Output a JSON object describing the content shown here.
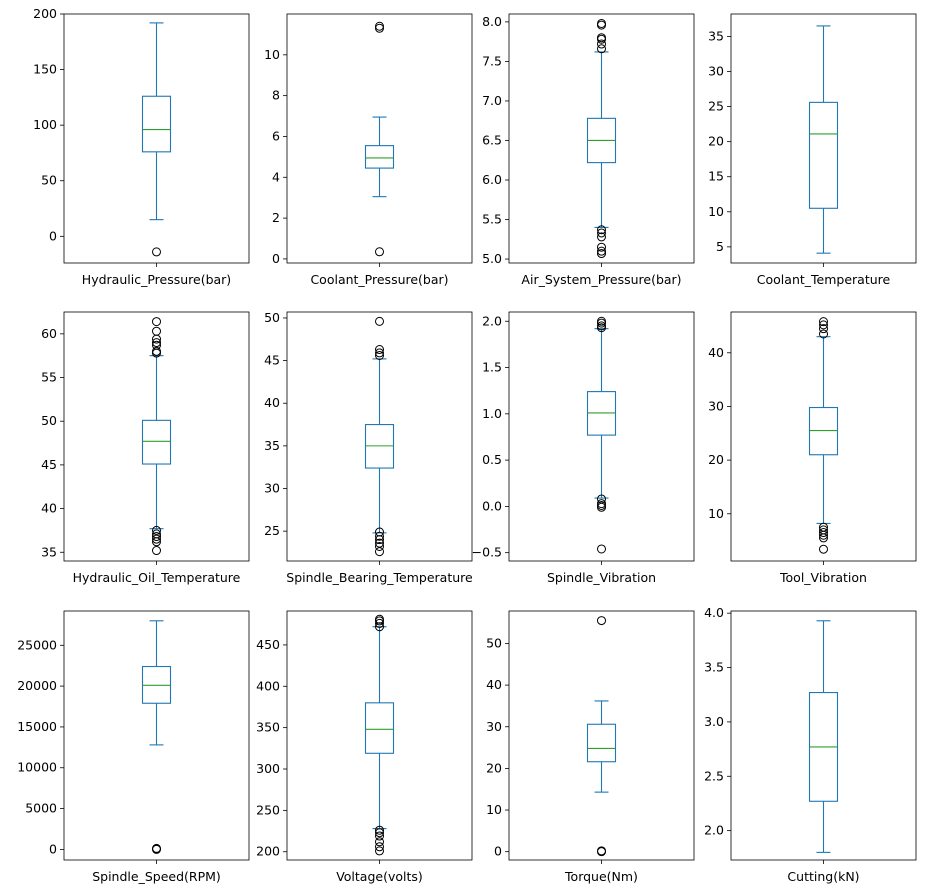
{
  "colors": {
    "box": "#1f77b4",
    "median": "#2ca02c",
    "outlier": "#000000",
    "axes": "#000000"
  },
  "chart_data": [
    {
      "type": "box",
      "xlabel": "Hydraulic_Pressure(bar)",
      "ylim": [
        -24,
        200
      ],
      "yticks": [
        "0",
        "50",
        "100",
        "150",
        "200"
      ],
      "yticks_values": [
        0,
        50,
        100,
        150,
        200
      ],
      "whisker_low": 15,
      "q1": 76,
      "median": 96,
      "q3": 126,
      "whisker_high": 192,
      "outliers": [
        -14
      ]
    },
    {
      "type": "box",
      "xlabel": "Coolant_Pressure(bar)",
      "ylim": [
        -0.2,
        12
      ],
      "yticks": [
        "0",
        "2",
        "4",
        "6",
        "8",
        "10"
      ],
      "yticks_values": [
        0,
        2,
        4,
        6,
        8,
        10
      ],
      "whisker_low": 3.05,
      "q1": 4.45,
      "median": 4.95,
      "q3": 5.55,
      "whisker_high": 6.95,
      "outliers": [
        0.35,
        11.3,
        11.4
      ]
    },
    {
      "type": "box",
      "xlabel": "Air_System_Pressure(bar)",
      "ylim": [
        4.95,
        8.1
      ],
      "yticks": [
        "5.0",
        "5.5",
        "6.0",
        "6.5",
        "7.0",
        "7.5",
        "8.0"
      ],
      "yticks_values": [
        5.0,
        5.5,
        6.0,
        6.5,
        7.0,
        7.5,
        8.0
      ],
      "whisker_low": 5.4,
      "q1": 6.22,
      "median": 6.5,
      "q3": 6.78,
      "whisker_high": 7.62,
      "outliers": [
        5.07,
        5.1,
        5.15,
        5.28,
        5.33,
        5.37,
        7.66,
        7.72,
        7.78,
        7.8,
        7.96,
        7.98
      ]
    },
    {
      "type": "box",
      "xlabel": "Coolant_Temperature",
      "ylim": [
        2.7,
        38.2
      ],
      "yticks": [
        "5",
        "10",
        "15",
        "20",
        "25",
        "30",
        "35"
      ],
      "yticks_values": [
        5,
        10,
        15,
        20,
        25,
        30,
        35
      ],
      "whisker_low": 4.1,
      "q1": 10.5,
      "median": 21.1,
      "q3": 25.6,
      "whisker_high": 36.5,
      "outliers": []
    },
    {
      "type": "box",
      "xlabel": "Hydraulic_Oil_Temperature",
      "ylim": [
        34,
        62.5
      ],
      "yticks": [
        "35",
        "40",
        "45",
        "50",
        "55",
        "60"
      ],
      "yticks_values": [
        35,
        40,
        45,
        50,
        55,
        60
      ],
      "whisker_low": 37.7,
      "q1": 45.1,
      "median": 47.7,
      "q3": 50.1,
      "whisker_high": 57.5,
      "outliers": [
        35.2,
        36.2,
        36.5,
        36.8,
        37.1,
        37.5,
        57.8,
        58.0,
        58.7,
        59.0,
        59.4,
        60.3,
        61.4
      ]
    },
    {
      "type": "box",
      "xlabel": "Spindle_Bearing_Temperature",
      "ylim": [
        21.5,
        50.7
      ],
      "yticks": [
        "25",
        "30",
        "35",
        "40",
        "45",
        "50"
      ],
      "yticks_values": [
        25,
        30,
        35,
        40,
        45,
        50
      ],
      "whisker_low": 24.8,
      "q1": 32.4,
      "median": 35.0,
      "q3": 37.5,
      "whisker_high": 45.2,
      "outliers": [
        22.6,
        23.2,
        23.6,
        24.0,
        24.4,
        24.9,
        45.6,
        45.9,
        46.3,
        49.6
      ]
    },
    {
      "type": "box",
      "xlabel": "Spindle_Vibration",
      "ylim": [
        -0.59,
        2.1
      ],
      "yticks": [
        "−0.5",
        "0.0",
        "0.5",
        "1.0",
        "1.5",
        "2.0"
      ],
      "yticks_values": [
        -0.5,
        0.0,
        0.5,
        1.0,
        1.5,
        2.0
      ],
      "whisker_low": 0.09,
      "q1": 0.77,
      "median": 1.01,
      "q3": 1.24,
      "whisker_high": 1.92,
      "outliers": [
        -0.46,
        -0.01,
        0.01,
        0.03,
        0.08,
        1.93,
        1.95,
        1.98,
        2.0
      ]
    },
    {
      "type": "box",
      "xlabel": "Tool_Vibration",
      "ylim": [
        1.2,
        47.6
      ],
      "yticks": [
        "10",
        "20",
        "30",
        "40"
      ],
      "yticks_values": [
        10,
        20,
        30,
        40
      ],
      "whisker_low": 8.2,
      "q1": 21.0,
      "median": 25.5,
      "q3": 29.8,
      "whisker_high": 43.0,
      "outliers": [
        3.4,
        5.5,
        6.0,
        6.5,
        7.0,
        7.5,
        43.5,
        44.5,
        45.2,
        45.8
      ]
    },
    {
      "type": "box",
      "xlabel": "Spindle_Speed(RPM)",
      "ylim": [
        -1300,
        29200
      ],
      "yticks": [
        "0",
        "5000",
        "10000",
        "15000",
        "20000",
        "25000"
      ],
      "yticks_values": [
        0,
        5000,
        10000,
        15000,
        20000,
        25000
      ],
      "whisker_low": 12800,
      "q1": 17900,
      "median": 20100,
      "q3": 22400,
      "whisker_high": 28000,
      "outliers": [
        0,
        60,
        120
      ]
    },
    {
      "type": "box",
      "xlabel": "Voltage(volts)",
      "ylim": [
        190,
        491
      ],
      "yticks": [
        "200",
        "250",
        "300",
        "350",
        "400",
        "450"
      ],
      "yticks_values": [
        200,
        250,
        300,
        350,
        400,
        450
      ],
      "whisker_low": 228,
      "q1": 319,
      "median": 348,
      "q3": 380,
      "whisker_high": 472,
      "outliers": [
        201,
        206,
        212,
        219,
        223,
        226,
        472,
        476,
        479,
        481
      ]
    },
    {
      "type": "box",
      "xlabel": "Torque(Nm)",
      "ylim": [
        -2.0,
        57.8
      ],
      "yticks": [
        "0",
        "10",
        "20",
        "30",
        "40",
        "50"
      ],
      "yticks_values": [
        0,
        10,
        20,
        30,
        40,
        50
      ],
      "whisker_low": 14.3,
      "q1": 21.6,
      "median": 24.8,
      "q3": 30.6,
      "whisker_high": 36.2,
      "outliers": [
        0.0,
        0.2,
        55.5
      ]
    },
    {
      "type": "box",
      "xlabel": "Cutting(kN)",
      "ylim": [
        1.73,
        4.02
      ],
      "yticks": [
        "2.0",
        "2.5",
        "3.0",
        "3.5",
        "4.0"
      ],
      "yticks_values": [
        2.0,
        2.5,
        3.0,
        3.5,
        4.0
      ],
      "whisker_low": 1.8,
      "q1": 2.27,
      "median": 2.77,
      "q3": 3.27,
      "whisker_high": 3.93,
      "outliers": []
    }
  ]
}
